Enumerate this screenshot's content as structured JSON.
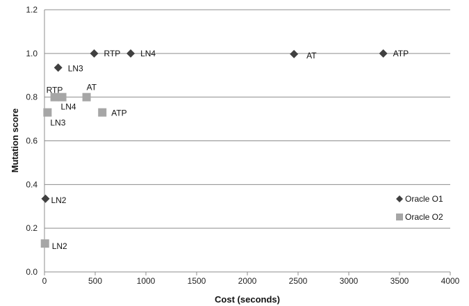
{
  "chart_data": {
    "type": "scatter",
    "title": "",
    "xlabel": "Cost (seconds)",
    "ylabel": "Mutation score",
    "xlim": [
      0,
      4000
    ],
    "ylim": [
      0.0,
      1.2
    ],
    "xticks": [
      0,
      500,
      1000,
      1500,
      2000,
      2500,
      3000,
      3500,
      4000
    ],
    "xtick_labels": [
      "0",
      "500",
      "1000",
      "1500",
      "2000",
      "2500",
      "3000",
      "3500",
      "4000"
    ],
    "yticks": [
      0.0,
      0.2,
      0.4,
      0.6,
      0.8,
      1.0,
      1.2
    ],
    "ytick_labels": [
      "0.0",
      "0.2",
      "0.4",
      "0.6",
      "0.8",
      "1.0",
      "1.2"
    ],
    "grid": "horizontal",
    "legend_position": "bottom-right",
    "series": [
      {
        "name": "Oracle O1",
        "marker": "diamond",
        "color": "#404040",
        "points": [
          {
            "x": 10,
            "y": 0.335,
            "label": "LN2"
          },
          {
            "x": 135,
            "y": 0.935,
            "label": "LN3"
          },
          {
            "x": 490,
            "y": 1.0,
            "label": "RTP"
          },
          {
            "x": 850,
            "y": 1.0,
            "label": "LN4"
          },
          {
            "x": 2460,
            "y": 0.997,
            "label": "AT"
          },
          {
            "x": 3340,
            "y": 1.0,
            "label": "ATP"
          }
        ]
      },
      {
        "name": "Oracle O2",
        "marker": "square",
        "color": "#a6a6a6",
        "points": [
          {
            "x": 5,
            "y": 0.13,
            "label": "LN2"
          },
          {
            "x": 30,
            "y": 0.73,
            "label": "LN3"
          },
          {
            "x": 100,
            "y": 0.8,
            "label": "RTP"
          },
          {
            "x": 175,
            "y": 0.8,
            "label": "LN4"
          },
          {
            "x": 415,
            "y": 0.8,
            "label": "AT"
          },
          {
            "x": 570,
            "y": 0.73,
            "label": "ATP"
          }
        ]
      }
    ]
  }
}
